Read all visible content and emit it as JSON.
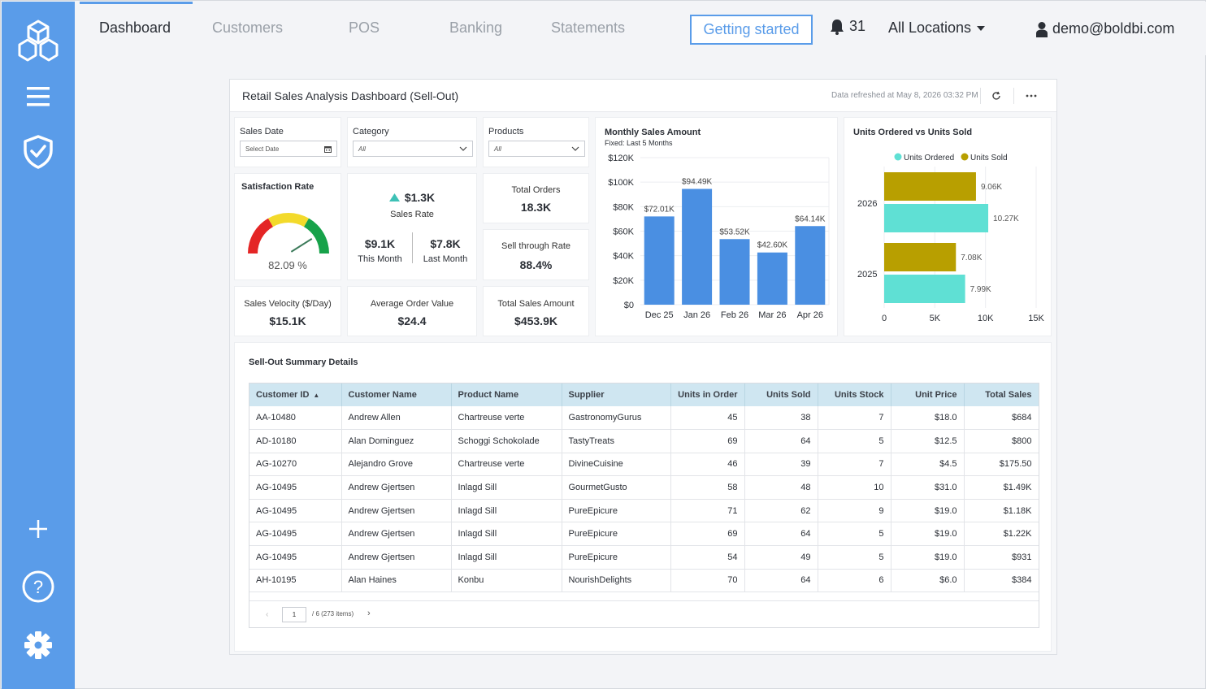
{
  "nav": {
    "tabs": [
      {
        "label": "Dashboard",
        "active": true
      },
      {
        "label": "Customers"
      },
      {
        "label": "POS"
      },
      {
        "label": "Banking"
      },
      {
        "label": "Statements"
      }
    ],
    "getting_started": "Getting started",
    "notification_count": "31",
    "locations": "All Locations",
    "user_email": "demo@boldbi.com"
  },
  "sidebar": {
    "icons": [
      "cube-logo-icon",
      "menu-icon",
      "shield-check-icon",
      "plus-icon",
      "help-icon",
      "gear-icon"
    ]
  },
  "dashboard": {
    "title": "Retail Sales Analysis Dashboard (Sell-Out)",
    "refreshed": "Data refreshed at May 8, 2026 03:32 PM",
    "filters": {
      "sales_date": {
        "label": "Sales Date",
        "placeholder": "Select Date"
      },
      "category": {
        "label": "Category",
        "value": "All"
      },
      "products": {
        "label": "Products",
        "value": "All"
      }
    },
    "satisfaction": {
      "label": "Satisfaction Rate",
      "value": "82.09 %",
      "ratio": 0.8209
    },
    "sales_rate": {
      "value": "$1.3K",
      "label": "Sales Rate",
      "this_month_value": "$9.1K",
      "this_month_label": "This Month",
      "last_month_value": "$7.8K",
      "last_month_label": "Last Month"
    },
    "total_orders": {
      "label": "Total Orders",
      "value": "18.3K"
    },
    "sell_through": {
      "label": "Sell through Rate",
      "value": "88.4%"
    },
    "sales_velocity": {
      "label": "Sales Velocity ($/Day)",
      "value": "$15.1K"
    },
    "avg_order": {
      "label": "Average Order Value",
      "value": "$24.4"
    },
    "total_sales": {
      "label": "Total Sales Amount",
      "value": "$453.9K"
    },
    "table_title": "Sell-Out Summary Details",
    "table": {
      "columns": [
        "Customer ID",
        "Customer Name",
        "Product Name",
        "Supplier",
        "Units in Order",
        "Units Sold",
        "Units Stock",
        "Unit Price",
        "Total Sales"
      ],
      "rows": [
        [
          "AA-10480",
          "Andrew Allen",
          "Chartreuse verte",
          "GastronomyGurus",
          "45",
          "38",
          "7",
          "$18.0",
          "$684"
        ],
        [
          "AD-10180",
          "Alan Dominguez",
          "Schoggi Schokolade",
          "TastyTreats",
          "69",
          "64",
          "5",
          "$12.5",
          "$800"
        ],
        [
          "AG-10270",
          "Alejandro Grove",
          "Chartreuse verte",
          "DivineCuisine",
          "46",
          "39",
          "7",
          "$4.5",
          "$175.50"
        ],
        [
          "AG-10495",
          "Andrew Gjertsen",
          "Inlagd Sill",
          "GourmetGusto",
          "58",
          "48",
          "10",
          "$31.0",
          "$1.49K"
        ],
        [
          "AG-10495",
          "Andrew Gjertsen",
          "Inlagd Sill",
          "PureEpicure",
          "71",
          "62",
          "9",
          "$19.0",
          "$1.18K"
        ],
        [
          "AG-10495",
          "Andrew Gjertsen",
          "Inlagd Sill",
          "PureEpicure",
          "69",
          "64",
          "5",
          "$19.0",
          "$1.22K"
        ],
        [
          "AG-10495",
          "Andrew Gjertsen",
          "Inlagd Sill",
          "PureEpicure",
          "54",
          "49",
          "5",
          "$19.0",
          "$931"
        ],
        [
          "AH-10195",
          "Alan Haines",
          "Konbu",
          "NourishDelights",
          "70",
          "64",
          "6",
          "$6.0",
          "$384"
        ]
      ]
    },
    "pager": {
      "page": "1",
      "info": "/ 6 (273 items)"
    }
  },
  "chart_data": [
    {
      "type": "bar",
      "title": "Monthly Sales Amount",
      "subtitle": "Fixed: Last 5 Months",
      "categories": [
        "Dec 25",
        "Jan 26",
        "Feb 26",
        "Mar 26",
        "Apr 26"
      ],
      "values": [
        72010,
        94490,
        53520,
        42600,
        64140
      ],
      "data_labels": [
        "$72.01K",
        "$94.49K",
        "$53.52K",
        "$42.60K",
        "$64.14K"
      ],
      "ylim": [
        0,
        120000
      ],
      "yticks": [
        "$0",
        "$20K",
        "$40K",
        "$60K",
        "$80K",
        "$100K",
        "$120K"
      ],
      "color": "#4a8fe2"
    },
    {
      "type": "bar",
      "orientation": "horizontal",
      "title": "Units Ordered vs Units Sold",
      "categories": [
        "2026",
        "2025"
      ],
      "series": [
        {
          "name": "Units Ordered",
          "values": [
            10270,
            7990
          ],
          "labels": [
            "10.27K",
            "7.99K"
          ],
          "color": "#5fe0d4"
        },
        {
          "name": "Units Sold",
          "values": [
            9060,
            7080
          ],
          "labels": [
            "9.06K",
            "7.08K"
          ],
          "color": "#b89f00"
        }
      ],
      "xlim": [
        0,
        15000
      ],
      "xticks": [
        "0",
        "5K",
        "10K",
        "15K"
      ],
      "legend": "top"
    }
  ]
}
